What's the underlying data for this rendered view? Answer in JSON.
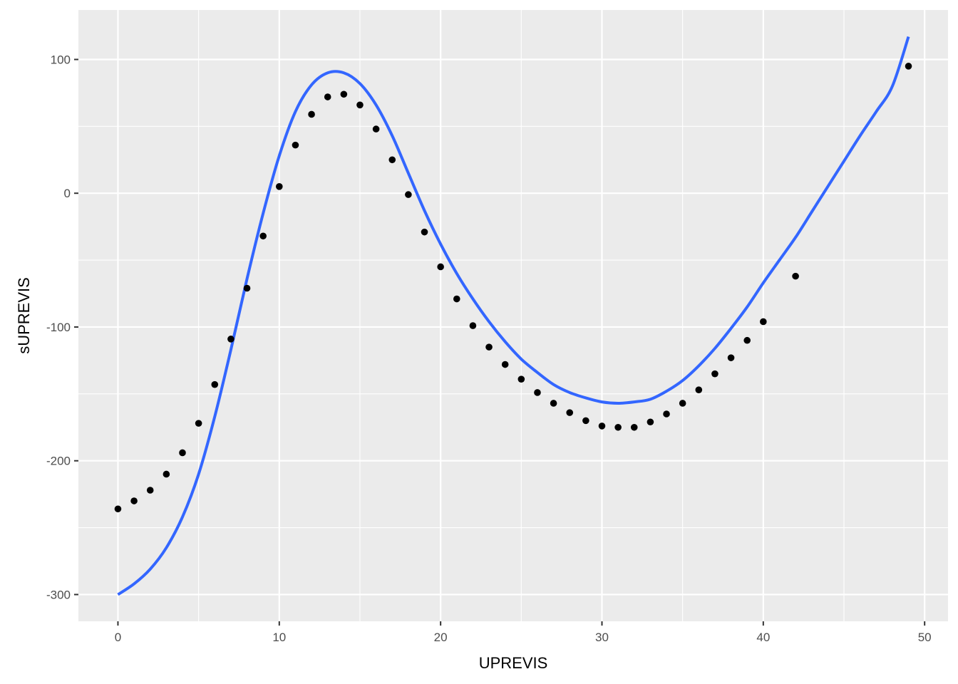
{
  "chart_data": {
    "type": "scatter",
    "xlabel": "UPREVIS",
    "ylabel": "sUPREVIS",
    "xlim": [
      -2.45,
      51.45
    ],
    "ylim": [
      -320,
      137
    ],
    "x_ticks": [
      0,
      10,
      20,
      30,
      40,
      50
    ],
    "y_ticks": [
      -300,
      -200,
      -100,
      0,
      100
    ],
    "grid": true,
    "legend": "none",
    "colors": {
      "panel": "#ebebeb",
      "grid_major": "#ffffff",
      "points": "#000000",
      "line": "#3366ff",
      "tick_text": "#4d4d4d",
      "tick_mark": "#333333"
    },
    "points": {
      "x": [
        0,
        1,
        2,
        3,
        4,
        5,
        6,
        7,
        8,
        9,
        10,
        11,
        12,
        13,
        14,
        15,
        16,
        17,
        18,
        19,
        20,
        21,
        22,
        23,
        24,
        25,
        26,
        27,
        28,
        29,
        30,
        31,
        32,
        33,
        34,
        35,
        36,
        37,
        38,
        39,
        40,
        42,
        49
      ],
      "y": [
        -236,
        -230,
        -222,
        -210,
        -194,
        -172,
        -143,
        -109,
        -71,
        -32,
        5,
        36,
        59,
        72,
        74,
        66,
        48,
        25,
        -1,
        -29,
        -55,
        -79,
        -99,
        -115,
        -128,
        -139,
        -149,
        -157,
        -164,
        -170,
        -174,
        -175,
        -175,
        -171,
        -165,
        -157,
        -147,
        -135,
        -123,
        -110,
        -96,
        -62,
        95
      ]
    },
    "smooth": {
      "x": [
        0,
        1,
        2,
        3,
        4,
        5,
        6,
        7,
        8,
        9,
        10,
        11,
        12,
        13,
        14,
        15,
        16,
        17,
        18,
        19,
        20,
        21,
        22,
        23,
        24,
        25,
        26,
        27,
        28,
        29,
        30,
        31,
        32,
        33,
        34,
        35,
        36,
        37,
        38,
        39,
        40,
        41,
        42,
        43,
        44,
        45,
        46,
        47,
        48,
        49
      ],
      "y": [
        -300,
        -292,
        -281,
        -265,
        -242,
        -210,
        -167,
        -117,
        -64,
        -15,
        28,
        61,
        81,
        90,
        90,
        82,
        66,
        43,
        15,
        -13,
        -38,
        -60,
        -79,
        -96,
        -111,
        -124,
        -134,
        -143,
        -149,
        -153,
        -156,
        -157,
        -156,
        -154,
        -148,
        -140,
        -129,
        -116,
        -101,
        -85,
        -67,
        -50,
        -33,
        -14,
        5,
        24,
        43,
        61,
        80,
        117
      ]
    }
  }
}
